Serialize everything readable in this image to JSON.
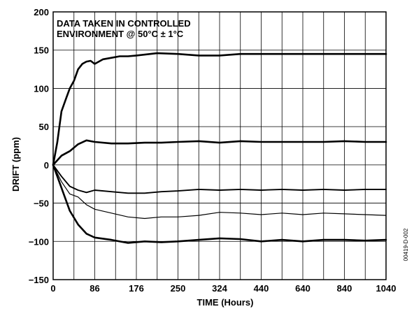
{
  "chart_data": {
    "type": "line",
    "title": "",
    "xlabel": "TIME (Hours)",
    "ylabel": "DRIFT (ppm)",
    "annotation": [
      "DATA TAKEN IN CONTROLLED",
      "ENVIRONMENT @ 50°C ± 1°C"
    ],
    "figure_id": "00419-D-002",
    "x_tick_labels": [
      "0",
      "86",
      "176",
      "250",
      "324",
      "440",
      "640",
      "840",
      "1040"
    ],
    "x_tick_positions": [
      0,
      1,
      2,
      3,
      4,
      5,
      6,
      7,
      8
    ],
    "x_scale": "categorical-ticks",
    "xlim": [
      0,
      8
    ],
    "ylim": [
      -150,
      200
    ],
    "y_ticks": [
      -150,
      -100,
      -50,
      0,
      50,
      100,
      150,
      200
    ],
    "grid": true,
    "series": [
      {
        "stroke": "heavy",
        "x": [
          0,
          0.1,
          0.2,
          0.3,
          0.4,
          0.5,
          0.6,
          0.7,
          0.8,
          0.9,
          1.0,
          1.2,
          1.4,
          1.6,
          1.8,
          2.0,
          2.5,
          3.0,
          3.5,
          4.0,
          4.5,
          5.0,
          6.0,
          7.0,
          8.0
        ],
        "y": [
          0,
          30,
          70,
          85,
          100,
          110,
          125,
          132,
          135,
          136,
          132,
          138,
          140,
          142,
          142,
          143,
          146,
          145,
          143,
          143,
          145,
          145,
          145,
          145,
          145
        ]
      },
      {
        "stroke": "heavy",
        "x": [
          0,
          0.2,
          0.4,
          0.6,
          0.8,
          1.0,
          1.4,
          1.8,
          2.2,
          2.6,
          3.0,
          3.5,
          4.0,
          4.5,
          5.0,
          5.5,
          6.0,
          6.5,
          7.0,
          7.5,
          8.0
        ],
        "y": [
          0,
          12,
          18,
          27,
          32,
          30,
          28,
          28,
          29,
          29,
          30,
          31,
          29,
          31,
          30,
          30,
          30,
          30,
          31,
          30,
          30
        ]
      },
      {
        "stroke": "medium",
        "x": [
          0,
          0.2,
          0.4,
          0.6,
          0.8,
          1.0,
          1.4,
          1.8,
          2.2,
          2.6,
          3.0,
          3.5,
          4.0,
          4.5,
          5.0,
          5.5,
          6.0,
          6.5,
          7.0,
          7.5,
          8.0
        ],
        "y": [
          0,
          -15,
          -28,
          -33,
          -36,
          -33,
          -35,
          -37,
          -37,
          -35,
          -34,
          -32,
          -33,
          -32,
          -33,
          -32,
          -33,
          -32,
          -33,
          -32,
          -32
        ]
      },
      {
        "stroke": "thin",
        "x": [
          0,
          0.2,
          0.4,
          0.6,
          0.8,
          1.0,
          1.4,
          1.8,
          2.2,
          2.6,
          3.0,
          3.5,
          4.0,
          4.5,
          5.0,
          5.5,
          6.0,
          6.5,
          7.0,
          7.5,
          8.0
        ],
        "y": [
          0,
          -22,
          -38,
          -42,
          -52,
          -58,
          -63,
          -68,
          -70,
          -68,
          -68,
          -66,
          -62,
          -63,
          -65,
          -63,
          -65,
          -63,
          -64,
          -65,
          -66
        ]
      },
      {
        "stroke": "heavy",
        "x": [
          0,
          0.2,
          0.4,
          0.6,
          0.8,
          1.0,
          1.4,
          1.8,
          2.2,
          2.6,
          3.0,
          3.5,
          4.0,
          4.5,
          5.0,
          5.5,
          6.0,
          6.5,
          7.0,
          7.5,
          8.0
        ],
        "y": [
          0,
          -30,
          -60,
          -78,
          -90,
          -95,
          -98,
          -102,
          -100,
          -101,
          -100,
          -98,
          -96,
          -97,
          -100,
          -98,
          -100,
          -98,
          -98,
          -99,
          -98
        ]
      }
    ]
  }
}
